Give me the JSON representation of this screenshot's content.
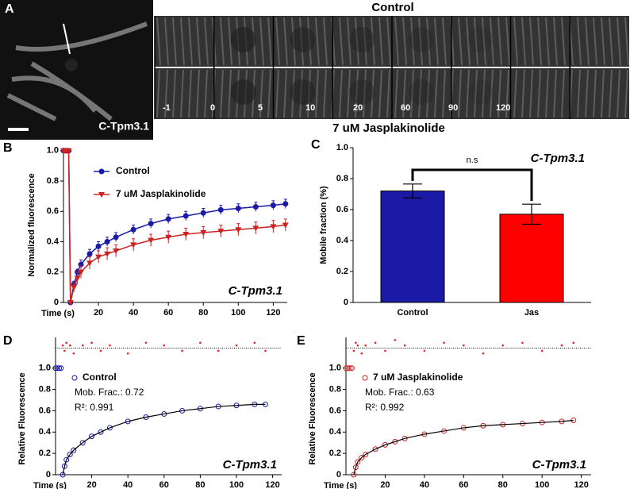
{
  "panel_a": {
    "panel_label": "A",
    "cell_label": "C-Tpm3.1",
    "top_title": "Control",
    "bottom_title": "7 uM Jasplakinolide",
    "timepoints": [
      "-1",
      "0",
      "5",
      "10",
      "20",
      "60",
      "90",
      "120"
    ]
  },
  "chart_data": [
    {
      "type": "line",
      "panel_label": "B",
      "xlabel": "Time (s)",
      "ylabel": "Normalized fluorescence",
      "annotation": "C-Tpm3.1",
      "x": [
        0,
        1,
        2,
        3,
        4,
        6,
        8,
        10,
        15,
        20,
        25,
        30,
        40,
        50,
        60,
        70,
        80,
        90,
        100,
        110,
        120,
        127
      ],
      "series": [
        {
          "name": "Control",
          "color": "#1a1aa6",
          "marker": "circle",
          "values": [
            1,
            1,
            1,
            1,
            0,
            0.12,
            0.2,
            0.25,
            0.32,
            0.37,
            0.4,
            0.43,
            0.48,
            0.52,
            0.55,
            0.57,
            0.59,
            0.61,
            0.62,
            0.63,
            0.64,
            0.65
          ],
          "errors": [
            0.01,
            0.01,
            0.01,
            0.01,
            0.01,
            0.02,
            0.02,
            0.03,
            0.03,
            0.03,
            0.03,
            0.03,
            0.03,
            0.03,
            0.03,
            0.03,
            0.03,
            0.03,
            0.03,
            0.03,
            0.03,
            0.03
          ]
        },
        {
          "name": "7 uM Jasplakinolide",
          "color": "#cc2222",
          "marker": "triangle",
          "values": [
            1,
            1,
            1,
            1,
            0,
            0.1,
            0.16,
            0.2,
            0.26,
            0.3,
            0.32,
            0.34,
            0.38,
            0.41,
            0.43,
            0.45,
            0.46,
            0.47,
            0.48,
            0.49,
            0.5,
            0.51
          ],
          "errors": [
            0.01,
            0.01,
            0.01,
            0.01,
            0.01,
            0.03,
            0.04,
            0.04,
            0.04,
            0.04,
            0.04,
            0.04,
            0.04,
            0.04,
            0.04,
            0.04,
            0.04,
            0.04,
            0.04,
            0.04,
            0.04,
            0.04
          ]
        }
      ],
      "xlim": [
        0,
        128
      ],
      "xticks": [
        20,
        40,
        60,
        80,
        100,
        120
      ],
      "ylim": [
        0,
        1.02
      ],
      "yticks": [
        0,
        0.2,
        0.4,
        0.6,
        0.8,
        {
          "value": 1,
          "label": "1.0"
        }
      ]
    },
    {
      "type": "bar",
      "panel_label": "C",
      "ylabel": "Mobile fraction (%)",
      "annotation": "C-Tpm3.1",
      "significance": "n.s",
      "categories": [
        "Control",
        "Jas"
      ],
      "values": [
        0.72,
        0.57
      ],
      "errors": [
        0.045,
        0.065
      ],
      "colors": [
        "#1a1aa6",
        "#ff0000"
      ],
      "ylim": [
        0,
        1
      ],
      "yticks": [
        0,
        0.2,
        0.4,
        0.6,
        0.8,
        {
          "value": 1,
          "label": "1.0"
        }
      ]
    },
    {
      "type": "scatter",
      "panel_label": "D",
      "xlabel": "Time (s)",
      "ylabel": "Relative Fluorescence",
      "annotation": "C-Tpm3.1",
      "fit_text": "Mob. Frac.: 0.72",
      "r2_text": "R²: 0.991",
      "x": [
        0,
        1,
        2,
        3,
        4,
        5,
        6,
        8,
        10,
        15,
        20,
        25,
        30,
        40,
        50,
        60,
        70,
        80,
        90,
        100,
        110,
        116
      ],
      "series": [
        {
          "name": "Control",
          "color": "#1a1aa6",
          "marker": "open-circle",
          "values": [
            1,
            1,
            1,
            1,
            0,
            0.08,
            0.14,
            0.19,
            0.23,
            0.3,
            0.36,
            0.4,
            0.44,
            0.5,
            0.54,
            0.57,
            0.6,
            0.62,
            0.64,
            0.65,
            0.66,
            0.66
          ]
        }
      ],
      "fit_values": [
        null,
        null,
        null,
        null,
        0,
        0.08,
        0.14,
        0.19,
        0.23,
        0.3,
        0.36,
        0.4,
        0.44,
        0.5,
        0.54,
        0.57,
        0.6,
        0.62,
        0.64,
        0.65,
        0.66,
        0.66
      ],
      "residuals": [
        null,
        null,
        null,
        null,
        0.01,
        -0.01,
        0.02,
        0.01,
        -0.02,
        0.01,
        0.02,
        -0.01,
        0.01,
        -0.02,
        0.02,
        0.01,
        -0.01,
        0.02,
        -0.01,
        0.01,
        0.02,
        -0.01
      ],
      "residual_ylim": [
        -0.04,
        0.04
      ],
      "xlim": [
        0,
        125
      ],
      "xticks": [
        20,
        40,
        60,
        80,
        100,
        120
      ],
      "ylim": [
        0,
        1.05
      ],
      "yticks": [
        0,
        0.2,
        0.4,
        0.6,
        0.8,
        {
          "value": 1,
          "label": "1.0"
        }
      ]
    },
    {
      "type": "scatter",
      "panel_label": "E",
      "xlabel": "Time (s)",
      "ylabel": "Relative Fluorescence",
      "annotation": "C-Tpm3.1",
      "fit_text": "Mob. Frac.: 0.63",
      "r2_text": "R²: 0.992",
      "x": [
        0,
        1,
        2,
        3,
        4,
        5,
        6,
        8,
        10,
        15,
        20,
        25,
        30,
        40,
        50,
        60,
        70,
        80,
        90,
        100,
        110,
        116
      ],
      "series": [
        {
          "name": "7 uM Jasplakinolide",
          "color": "#cc2222",
          "marker": "open-circle",
          "values": [
            1,
            1,
            1,
            1,
            0,
            0.07,
            0.12,
            0.16,
            0.19,
            0.24,
            0.28,
            0.31,
            0.34,
            0.38,
            0.41,
            0.44,
            0.46,
            0.47,
            0.48,
            0.49,
            0.5,
            0.51
          ]
        }
      ],
      "fit_values": [
        null,
        null,
        null,
        null,
        0,
        0.07,
        0.12,
        0.16,
        0.19,
        0.24,
        0.28,
        0.31,
        0.34,
        0.38,
        0.41,
        0.44,
        0.46,
        0.47,
        0.48,
        0.49,
        0.5,
        0.51
      ],
      "residuals": [
        null,
        null,
        null,
        null,
        -0.01,
        0.02,
        0.01,
        -0.02,
        0.01,
        0.02,
        -0.01,
        0.03,
        0.01,
        -0.01,
        0.02,
        0.01,
        -0.02,
        0.01,
        0.02,
        -0.01,
        0.01,
        0.02
      ],
      "residual_ylim": [
        -0.04,
        0.04
      ],
      "xlim": [
        0,
        125
      ],
      "xticks": [
        20,
        40,
        60,
        80,
        100,
        120
      ],
      "ylim": [
        0,
        1.05
      ],
      "yticks": [
        0,
        0.2,
        0.4,
        0.6,
        0.8,
        {
          "value": 1,
          "label": "1.0"
        }
      ]
    }
  ]
}
